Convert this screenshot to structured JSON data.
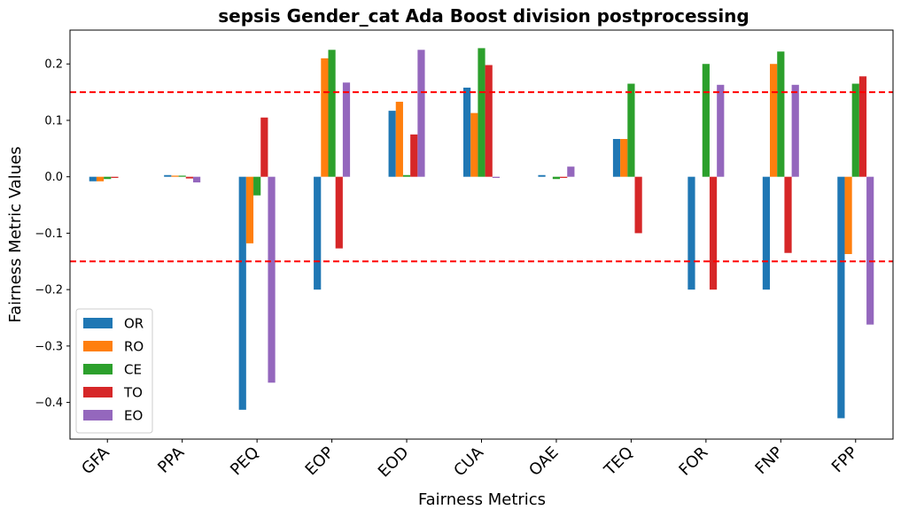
{
  "chart_data": {
    "type": "bar",
    "title": "sepsis Gender_cat Ada Boost division postprocessing",
    "xlabel": "Fairness Metrics",
    "ylabel": "Fairness Metric Values",
    "categories": [
      "GFA",
      "PPA",
      "PEQ",
      "EOP",
      "EOD",
      "CUA",
      "OAE",
      "TEQ",
      "FOR",
      "FNP",
      "FPP"
    ],
    "series": [
      {
        "name": "OR",
        "color": "#1f77b4",
        "values": [
          -0.008,
          0.003,
          -0.413,
          -0.2,
          0.117,
          0.158,
          0.003,
          0.067,
          -0.2,
          -0.2,
          -0.428
        ]
      },
      {
        "name": "RO",
        "color": "#ff7f0e",
        "values": [
          -0.008,
          0.002,
          -0.118,
          0.21,
          0.133,
          0.113,
          0.0,
          0.067,
          0.0,
          0.2,
          -0.137
        ]
      },
      {
        "name": "CE",
        "color": "#2ca02c",
        "values": [
          -0.004,
          0.002,
          -0.033,
          0.225,
          0.003,
          0.228,
          -0.004,
          0.165,
          0.2,
          0.222,
          0.165
        ]
      },
      {
        "name": "TO",
        "color": "#d62728",
        "values": [
          -0.002,
          -0.003,
          0.105,
          -0.127,
          0.075,
          0.198,
          -0.002,
          -0.1,
          -0.2,
          -0.135,
          0.178
        ]
      },
      {
        "name": "EO",
        "color": "#9467bd",
        "values": [
          0.0,
          -0.01,
          -0.365,
          0.167,
          0.225,
          -0.002,
          0.018,
          0.0,
          0.163,
          0.163,
          -0.262
        ]
      }
    ],
    "ylim": [
      -0.465,
      0.26
    ],
    "yticks": [
      "−0.4",
      "−0.3",
      "−0.2",
      "−0.1",
      "0.0",
      "0.1",
      "0.2"
    ],
    "ytick_values": [
      -0.4,
      -0.3,
      -0.2,
      -0.1,
      0.0,
      0.1,
      0.2
    ],
    "reference_lines": [
      0.15,
      -0.15
    ],
    "reference_line_color": "#ff0000",
    "legend_placement": "lower-left",
    "grid": false
  }
}
